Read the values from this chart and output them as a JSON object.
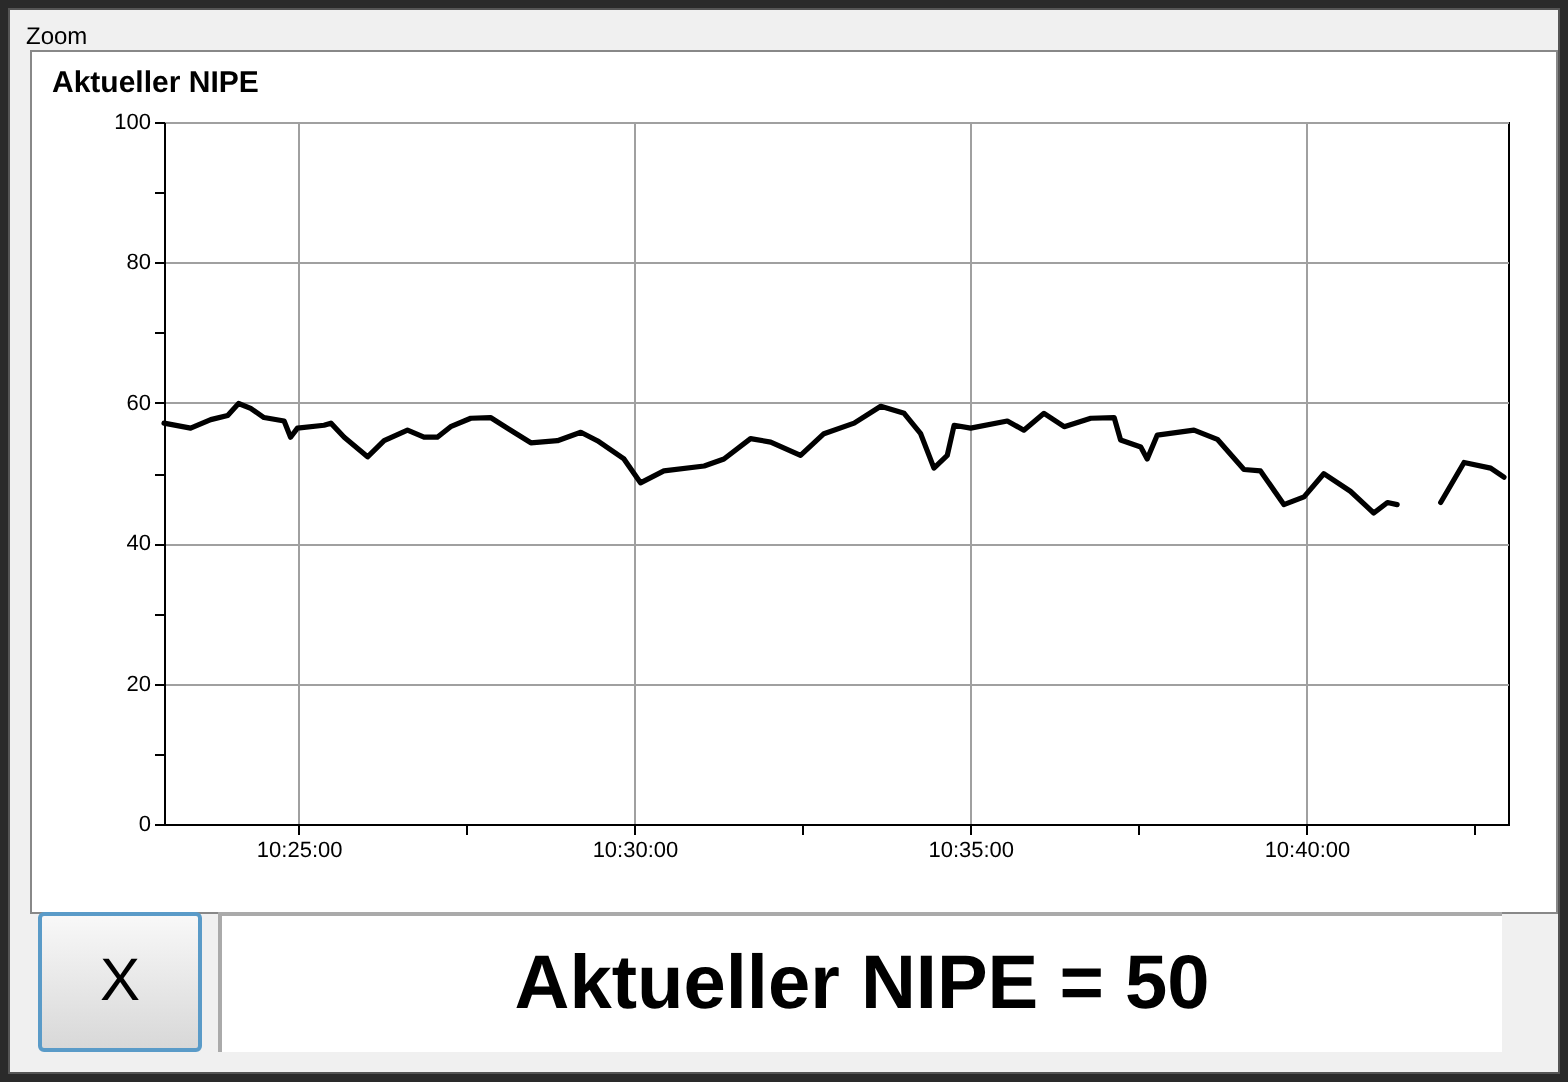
{
  "chart_data": {
    "type": "line",
    "title": "Aktueller NIPE",
    "annotations": [
      "Zoom",
      "X",
      "Aktueller NIPE = 50"
    ],
    "x": [
      10.3833,
      10.3899,
      10.3949,
      10.3991,
      10.4018,
      10.4048,
      10.4081,
      10.4131,
      10.4147,
      10.4164,
      10.423,
      10.4247,
      10.428,
      10.4338,
      10.4379,
      10.4437,
      10.4478,
      10.4511,
      10.4544,
      10.4594,
      10.4643,
      10.4693,
      10.4743,
      10.4809,
      10.4867,
      10.4908,
      10.4974,
      10.5015,
      10.5073,
      10.5173,
      10.5222,
      10.5288,
      10.5338,
      10.5412,
      10.547,
      10.5545,
      10.5611,
      10.5669,
      10.571,
      10.5743,
      10.5776,
      10.5793,
      10.5834,
      10.5925,
      10.5966,
      10.6016,
      10.6066,
      10.6132,
      10.619,
      10.6206,
      10.6256,
      10.6272,
      10.6297,
      10.6388,
      10.6446,
      10.6512,
      10.6553,
      10.6611,
      10.6661,
      10.671,
      10.6776,
      10.6834,
      10.6868,
      10.6892,
      10.6942,
      10.7,
      10.7058,
      10.7124,
      10.7157
    ],
    "series": [
      {
        "color": "#000000",
        "values": [
          57.1,
          56.4,
          57.6,
          58.2,
          59.9,
          59.2,
          57.9,
          57.4,
          55.1,
          56.4,
          56.8,
          57.1,
          55.1,
          52.3,
          54.6,
          56.1,
          55.1,
          55.1,
          56.6,
          57.8,
          57.9,
          56.1,
          54.3,
          54.6,
          55.8,
          54.6,
          52.0,
          48.6,
          50.3,
          51.0,
          52.0,
          54.9,
          54.4,
          52.5,
          55.6,
          57.1,
          59.5,
          58.5,
          55.6,
          50.7,
          52.5,
          56.8,
          56.4,
          57.4,
          56.1,
          58.5,
          56.6,
          57.8,
          57.9,
          54.7,
          53.7,
          52.0,
          55.4,
          56.1,
          54.8,
          50.5,
          50.3,
          45.5,
          46.6,
          49.9,
          47.4,
          44.3,
          45.8,
          45.5,
          null,
          45.8,
          51.5,
          50.7,
          49.4
        ]
      }
    ],
    "xlim": [
      10.3833,
      10.7167
    ],
    "xticks": [
      {
        "value": 10.4167,
        "label": "10:25:00"
      },
      {
        "value": 10.4583,
        "label": null
      },
      {
        "value": 10.5,
        "label": "10:30:00"
      },
      {
        "value": 10.5417,
        "label": null
      },
      {
        "value": 10.5833,
        "label": "10:35:00"
      },
      {
        "value": 10.625,
        "label": null
      },
      {
        "value": 10.6667,
        "label": "10:40:00"
      },
      {
        "value": 10.7083,
        "label": null
      }
    ],
    "ylim": [
      0,
      100
    ],
    "yticks": [
      0,
      {
        "value": 10,
        "label": null
      },
      20,
      {
        "value": 30,
        "label": null
      },
      40,
      {
        "value": 50,
        "label": null
      },
      60,
      {
        "value": 70,
        "label": null
      },
      80,
      {
        "value": 90,
        "label": null
      },
      100
    ],
    "grid": true,
    "legend": false,
    "marker": "none",
    "line_style": "solid"
  }
}
